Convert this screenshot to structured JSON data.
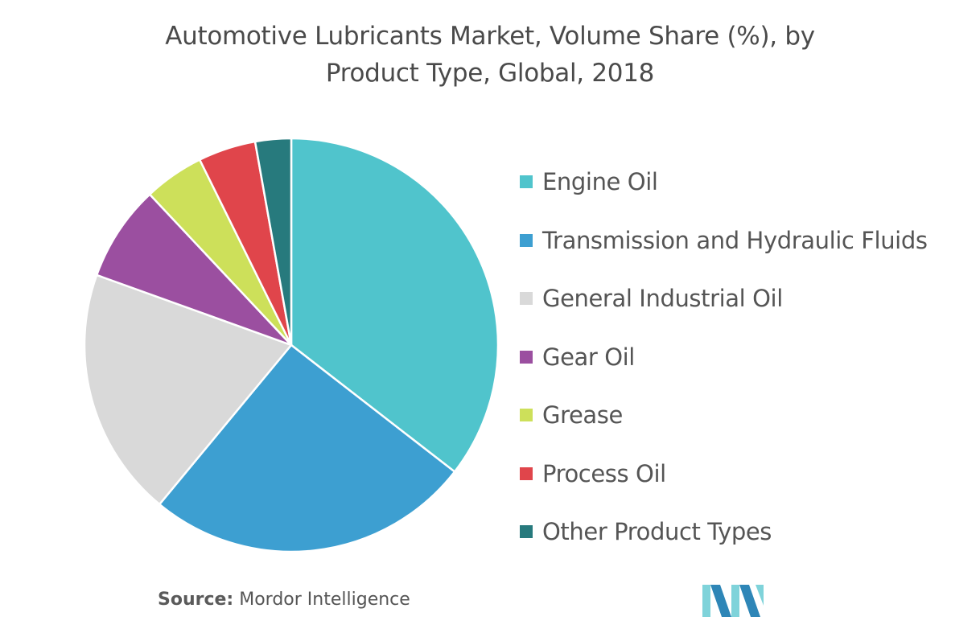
{
  "title_line1": "Automotive Lubricants Market, Volume Share (%), by",
  "title_line2": "Product Type, Global, 2018",
  "source_label": "Source:",
  "source_name": "Mordor Intelligence",
  "colors": {
    "engine_oil": "#50c4cc",
    "transmission": "#3d9fd1",
    "general_industrial": "#d9d9d9",
    "gear_oil": "#9b4fa0",
    "grease": "#cde05a",
    "process_oil": "#e0454b",
    "other": "#277a7d",
    "logo_light": "#7fd3da",
    "logo_dark": "#2e86b7"
  },
  "chart_data": {
    "type": "pie",
    "title": "Automotive Lubricants Market, Volume Share (%), by Product Type, Global, 2018",
    "start_angle_deg": 0,
    "direction": "clockwise",
    "legend_position": "right",
    "slices": [
      {
        "label": "Engine Oil",
        "value": 35.5,
        "color": "#50c4cc"
      },
      {
        "label": "Transmission and Hydraulic Fluids",
        "value": 25.5,
        "color": "#3d9fd1"
      },
      {
        "label": "General Industrial Oil",
        "value": 19.5,
        "color": "#d9d9d9"
      },
      {
        "label": "Gear Oil",
        "value": 7.5,
        "color": "#9b4fa0"
      },
      {
        "label": "Grease",
        "value": 4.7,
        "color": "#cde05a"
      },
      {
        "label": "Process Oil",
        "value": 4.5,
        "color": "#e0454b"
      },
      {
        "label": "Other Product Types",
        "value": 2.8,
        "color": "#277a7d"
      }
    ]
  }
}
